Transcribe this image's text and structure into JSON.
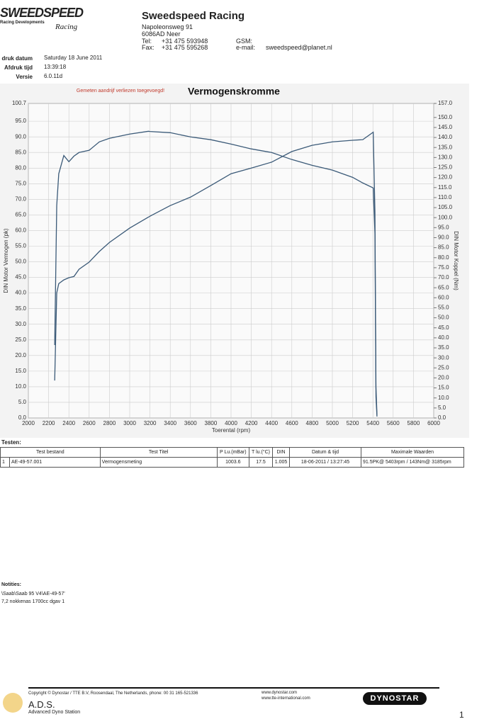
{
  "header": {
    "logo": "SWEEDSPEED",
    "logo_sub": "Racing Developments",
    "logo_script": "Racing",
    "company": "Sweedspeed Racing",
    "street": "Napoleonsweg 91",
    "city": "6086AD Neer",
    "tel_label": "Tel:",
    "tel": "+31 475 593948",
    "fax_label": "Fax:",
    "fax": "+31 475 595268",
    "gsm_label": "GSM:",
    "email_label": "e-mail:",
    "email": "sweedspeed@planet.nl"
  },
  "info": {
    "rows": [
      [
        "druk datum",
        "Saturday 18 June 2011"
      ],
      [
        "Afdruk tijd",
        "13:39:18"
      ],
      [
        "Versie",
        "6.0.11d"
      ]
    ]
  },
  "chart_data": {
    "type": "line",
    "title": "Vermogenskromme",
    "note": "Gemeten aandrijf verliezen toegevoegd!",
    "xlabel": "Toerental (rpm)",
    "ylabel": "DIN Motor Vermogen (pk)",
    "y2label": "DIN Motor Koppel (Nm)",
    "x": [
      2260,
      2280,
      2300,
      2350,
      2400,
      2450,
      2500,
      2600,
      2700,
      2800,
      3000,
      3185,
      3200,
      3400,
      3600,
      3800,
      4000,
      4200,
      4400,
      4600,
      4800,
      5000,
      5200,
      5300,
      5403,
      5420,
      5430,
      5440
    ],
    "series": [
      {
        "name": "DIN Motor Vermogen (pk)",
        "color": "#3b5a78",
        "values": [
          12.0,
          40.0,
          43.0,
          44.2,
          44.9,
          45.3,
          47.6,
          49.9,
          53.3,
          56.2,
          60.8,
          64.3,
          64.6,
          68.0,
          70.7,
          74.4,
          78.2,
          80.0,
          81.9,
          85.3,
          87.3,
          88.4,
          88.9,
          89.1,
          91.5,
          65.8,
          10.0,
          1.0
        ]
      },
      {
        "name": "DIN Motor Koppel (Nm)",
        "color": "#3b5a78",
        "axis": "y2",
        "values": [
          36.4,
          106.0,
          121.9,
          131.0,
          127.9,
          130.7,
          132.5,
          133.6,
          137.8,
          139.6,
          141.7,
          143.1,
          143.0,
          142.4,
          140.3,
          138.9,
          136.7,
          134.3,
          132.5,
          129.0,
          126.1,
          123.7,
          120.1,
          117.3,
          114.8,
          91.9,
          10.6,
          0.7
        ]
      }
    ],
    "xlim": [
      2000,
      6000
    ],
    "xticks": [
      2000,
      2200,
      2400,
      2600,
      2800,
      3000,
      3200,
      3400,
      3600,
      3800,
      4000,
      4200,
      4400,
      4600,
      4800,
      5000,
      5200,
      5400,
      5600,
      5800,
      6000
    ],
    "ylim": [
      0,
      100.7
    ],
    "yticks": [
      {
        "value": 0,
        "label": "0.0"
      },
      {
        "value": 5,
        "label": "5.0"
      },
      {
        "value": 10,
        "label": "10.0"
      },
      {
        "value": 15,
        "label": "15.0"
      },
      {
        "value": 20,
        "label": "20.0"
      },
      {
        "value": 25,
        "label": "25.0"
      },
      {
        "value": 30,
        "label": "30.0"
      },
      {
        "value": 35,
        "label": "35.0"
      },
      {
        "value": 40,
        "label": "40.0"
      },
      {
        "value": 45,
        "label": "45.0"
      },
      {
        "value": 50,
        "label": "50.0"
      },
      {
        "value": 55,
        "label": "55.0"
      },
      {
        "value": 60,
        "label": "60.0"
      },
      {
        "value": 65,
        "label": "65.0"
      },
      {
        "value": 70,
        "label": "70.0"
      },
      {
        "value": 75,
        "label": "75.0"
      },
      {
        "value": 80,
        "label": "80.0"
      },
      {
        "value": 85,
        "label": "85.0"
      },
      {
        "value": 90,
        "label": "90.0"
      },
      {
        "value": 95,
        "label": "95.0"
      },
      100.7
    ],
    "y2lim": [
      0,
      157
    ],
    "y2ticks": [
      {
        "value": 0,
        "label": "0.0"
      },
      {
        "value": 5,
        "label": "5.0"
      },
      {
        "value": 10,
        "label": "10.0"
      },
      {
        "value": 15,
        "label": "15.0"
      },
      {
        "value": 20,
        "label": "20.0"
      },
      {
        "value": 25,
        "label": "25.0"
      },
      {
        "value": 30,
        "label": "30.0"
      },
      {
        "value": 35,
        "label": "35.0"
      },
      {
        "value": 40,
        "label": "40.0"
      },
      {
        "value": 45,
        "label": "45.0"
      },
      {
        "value": 50,
        "label": "50.0"
      },
      {
        "value": 55,
        "label": "55.0"
      },
      {
        "value": 60,
        "label": "60.0"
      },
      {
        "value": 65,
        "label": "65.0"
      },
      {
        "value": 70,
        "label": "70.0"
      },
      {
        "value": 75,
        "label": "75.0"
      },
      {
        "value": 80,
        "label": "80.0"
      },
      {
        "value": 85,
        "label": "85.0"
      },
      {
        "value": 90,
        "label": "90.0"
      },
      {
        "value": 95,
        "label": "95.0"
      },
      {
        "value": 100,
        "label": "100.0"
      },
      {
        "value": 105,
        "label": "105.0"
      },
      {
        "value": 110,
        "label": "110.0"
      },
      {
        "value": 115,
        "label": "115.0"
      },
      {
        "value": 120,
        "label": "120.0"
      },
      {
        "value": 125,
        "label": "125.0"
      },
      {
        "value": 130,
        "label": "130.0"
      },
      {
        "value": 135,
        "label": "135.0"
      },
      {
        "value": 140,
        "label": "140.0"
      },
      {
        "value": 145,
        "label": "145.0"
      },
      {
        "value": 150,
        "label": "150.0"
      },
      {
        "value": 157,
        "label": "157.0"
      }
    ],
    "grid": true
  },
  "table": {
    "title": "Testen:",
    "header": [
      "Test bestand",
      "Test Titel",
      "P Lu.(mBar)",
      "T lu.(°C)",
      "DIN",
      "Datum & tijd",
      "Maximale Waarden"
    ],
    "rows": [
      [
        1,
        "AE-49-57.001",
        "Vermogensmeting",
        1003.6,
        17.5,
        1.005,
        "18-06-2011 / 13:27:45",
        "91.5PK@ 5403rpm / 143Nm@ 3185rpm"
      ]
    ]
  },
  "notes": {
    "title": "Notities:",
    "lines": [
      "\\Saab\\Saab 95 V4\\AE-49-57'",
      "7,2 nokkenas 1700cc dgav 1"
    ]
  },
  "footer": {
    "copyright": "Copyright © Dynostar / TTE B.V, Roosendaal, The Netherlands, phone: 00 31 165-521336",
    "web1": "www.dynostar.com",
    "web2": "www.tte-international.com",
    "ads": "A.D.S.",
    "ads_sub": "Advanced Dyno Station",
    "brand": "DYNOSTAR",
    "page": "1"
  }
}
